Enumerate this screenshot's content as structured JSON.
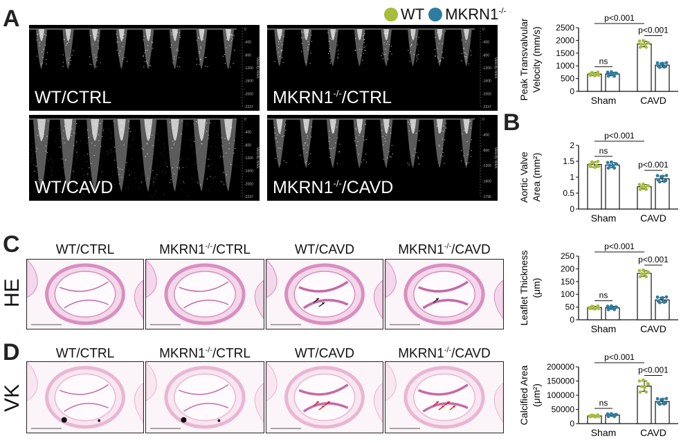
{
  "panels": {
    "A": "A",
    "B": "B",
    "C": "C",
    "D": "D"
  },
  "legend": {
    "wt_label": "WT",
    "ko_label": "MKRN1",
    "ko_sup": "-/-",
    "wt_color": "#a8bd3a",
    "ko_color": "#2e7da0"
  },
  "echo_panels": [
    {
      "label": "WT/CTRL",
      "sup": "",
      "suffix": "",
      "scale": [
        "0",
        "-400",
        "-800",
        "-1200",
        "-1600",
        "-2000",
        "-2237"
      ],
      "severity": 0.45
    },
    {
      "label": "MKRN1",
      "sup": "-/-",
      "suffix": "/CTRL",
      "scale": [
        "0",
        "-400",
        "-800",
        "-1200",
        "-1600",
        "-2000",
        "-2237"
      ],
      "severity": 0.4
    },
    {
      "label": "WT/CAVD",
      "sup": "",
      "suffix": "",
      "scale": [
        "0",
        "-400",
        "-800",
        "-1200",
        "-1600",
        "-2000",
        "-2237"
      ],
      "severity": 1.0
    },
    {
      "label": "MKRN1",
      "sup": "-/-",
      "suffix": "/CAVD",
      "scale": [
        "0",
        "-400",
        "-800",
        "-1200",
        "-1600",
        "-1796"
      ],
      "severity": 0.6
    }
  ],
  "echo_axis_title": "Velocity mm/s",
  "histology": {
    "column_titles": [
      {
        "label": "WT/CTRL",
        "sup": "",
        "suffix": ""
      },
      {
        "label": "MKRN1",
        "sup": "-/-",
        "suffix": "/CTRL"
      },
      {
        "label": "WT/CAVD",
        "sup": "",
        "suffix": ""
      },
      {
        "label": "MKRN1",
        "sup": "-/-",
        "suffix": "/CAVD"
      }
    ],
    "row_labels": {
      "he": "HE",
      "vk": "VK"
    }
  },
  "chart_data": [
    {
      "panel": "A",
      "type": "bar",
      "ylabel": "Peak Transvalvular Velocity (mm/s)",
      "ylabel_lines": [
        "Peak Transvalvular",
        "Velocity (mm/s)"
      ],
      "categories": [
        "Sham",
        "CAVD"
      ],
      "ylim": [
        0,
        2500
      ],
      "yticks": [
        0,
        500,
        1000,
        1500,
        2000,
        2500
      ],
      "series": [
        {
          "name": "WT",
          "values": [
            680,
            1860
          ],
          "sd": [
            60,
            110
          ]
        },
        {
          "name": "MKRN1-/-",
          "values": [
            680,
            1030
          ],
          "sd": [
            70,
            80
          ]
        }
      ],
      "annotations": [
        {
          "text": "ns",
          "kind": "within",
          "category": 0
        },
        {
          "text": "p<0.001",
          "kind": "within",
          "category": 1
        },
        {
          "text": "p<0.001",
          "kind": "across"
        }
      ]
    },
    {
      "panel": "B",
      "type": "bar",
      "ylabel": "Aortic Valve Area (mm2)",
      "ylabel_lines": [
        "Aortic Valve",
        "Area (mm²)"
      ],
      "categories": [
        "Sham",
        "CAVD"
      ],
      "ylim": [
        0,
        2.0
      ],
      "yticks": [
        0.0,
        0.5,
        1.0,
        1.5,
        2.0
      ],
      "series": [
        {
          "name": "WT",
          "values": [
            1.4,
            0.7
          ],
          "sd": [
            0.08,
            0.07
          ]
        },
        {
          "name": "MKRN1-/-",
          "values": [
            1.38,
            0.95
          ],
          "sd": [
            0.08,
            0.09
          ]
        }
      ],
      "annotations": [
        {
          "text": "ns",
          "kind": "within",
          "category": 0
        },
        {
          "text": "p<0.001",
          "kind": "within",
          "category": 1
        },
        {
          "text": "p<0.001",
          "kind": "across"
        }
      ]
    },
    {
      "panel": "C",
      "type": "bar",
      "ylabel": "Leaflet Thickness (μm)",
      "ylabel_lines": [
        "Leaflet Thickness",
        "(μm)"
      ],
      "categories": [
        "Sham",
        "CAVD"
      ],
      "ylim": [
        0,
        250
      ],
      "yticks": [
        0,
        50,
        100,
        150,
        200,
        250
      ],
      "series": [
        {
          "name": "WT",
          "values": [
            48,
            182
          ],
          "sd": [
            5,
            11
          ]
        },
        {
          "name": "MKRN1-/-",
          "values": [
            47,
            78
          ],
          "sd": [
            6,
            10
          ]
        }
      ],
      "annotations": [
        {
          "text": "ns",
          "kind": "within",
          "category": 0
        },
        {
          "text": "p<0.001",
          "kind": "within",
          "category": 1
        },
        {
          "text": "p<0.001",
          "kind": "across"
        }
      ]
    },
    {
      "panel": "D",
      "type": "bar",
      "ylabel": "Calcified Area (μm2)",
      "ylabel_lines": [
        "Calcified Area",
        "(μm²)"
      ],
      "categories": [
        "Sham",
        "CAVD"
      ],
      "ylim": [
        0,
        200000
      ],
      "yticks": [
        0,
        50000,
        100000,
        150000,
        200000
      ],
      "series": [
        {
          "name": "WT",
          "values": [
            27000,
            132000
          ],
          "sd": [
            3000,
            18000
          ]
        },
        {
          "name": "MKRN1-/-",
          "values": [
            30000,
            78000
          ],
          "sd": [
            4000,
            9000
          ]
        }
      ],
      "annotations": [
        {
          "text": "ns",
          "kind": "within",
          "category": 0
        },
        {
          "text": "p<0.001",
          "kind": "within",
          "category": 1
        },
        {
          "text": "p<0.001",
          "kind": "across"
        }
      ]
    }
  ]
}
